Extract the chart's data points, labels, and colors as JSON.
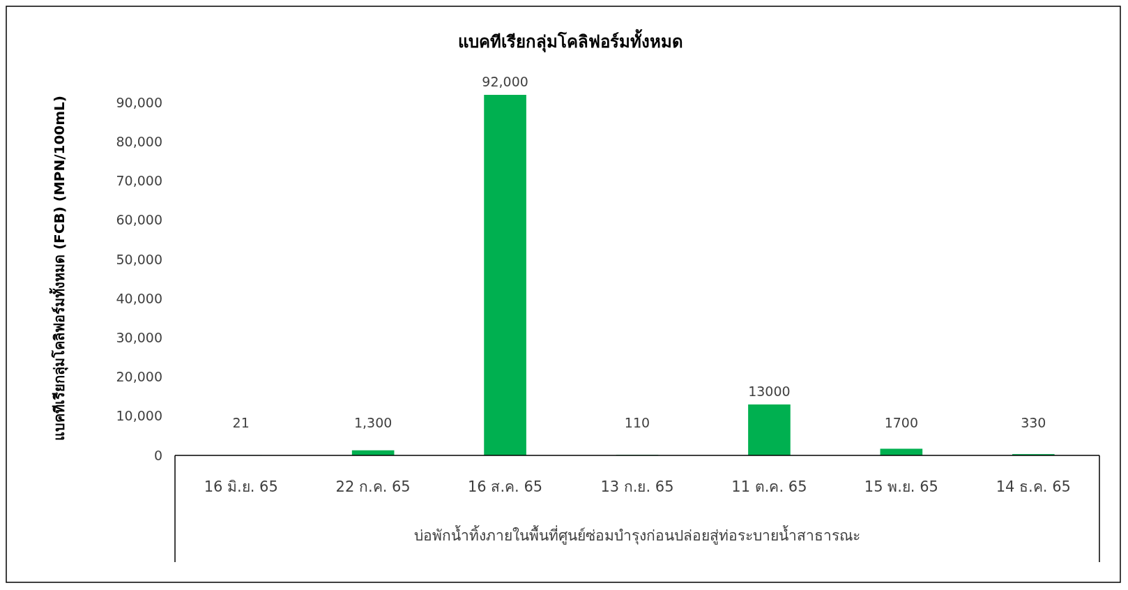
{
  "chart_data": {
    "type": "bar",
    "title": "แบคทีเรียกลุ่มโคลิฟอร์มทั้งหมด",
    "ylabel": "แบคทีเรียกลุ่มโคลิฟอร์มทั้งหมด (FCB) (MPN/100mL)",
    "xlabel": "บ่อพักน้ำทิ้งภายในพื้นที่ศูนย์ซ่อมบำรุงก่อนปล่อยสู่ท่อระบายน้ำสาธารณะ",
    "categories": [
      "16 มิ.ย. 65",
      "22 ก.ค. 65",
      "16 ส.ค. 65",
      "13 ก.ย. 65",
      "11 ต.ค. 65",
      "15 พ.ย. 65",
      "14 ธ.ค. 65"
    ],
    "values": [
      21,
      1300,
      92000,
      110,
      13000,
      1700,
      330
    ],
    "value_labels": [
      "21",
      "1,300",
      "92,000",
      "110",
      "13000",
      "1700",
      "330"
    ],
    "color": "#00b050",
    "ylim": [
      0,
      92000
    ],
    "yticks": [
      0,
      {
        "value": 10000,
        "label": "10,000"
      },
      {
        "value": 20000,
        "label": "20,000"
      },
      {
        "value": 30000,
        "label": "30,000"
      },
      {
        "value": 40000,
        "label": "40,000"
      },
      {
        "value": 50000,
        "label": "50,000"
      },
      {
        "value": 60000,
        "label": "60,000"
      },
      {
        "value": 70000,
        "label": "70,000"
      },
      {
        "value": 80000,
        "label": "80,000"
      },
      {
        "value": 90000,
        "label": "90,000"
      }
    ],
    "grid": false
  }
}
